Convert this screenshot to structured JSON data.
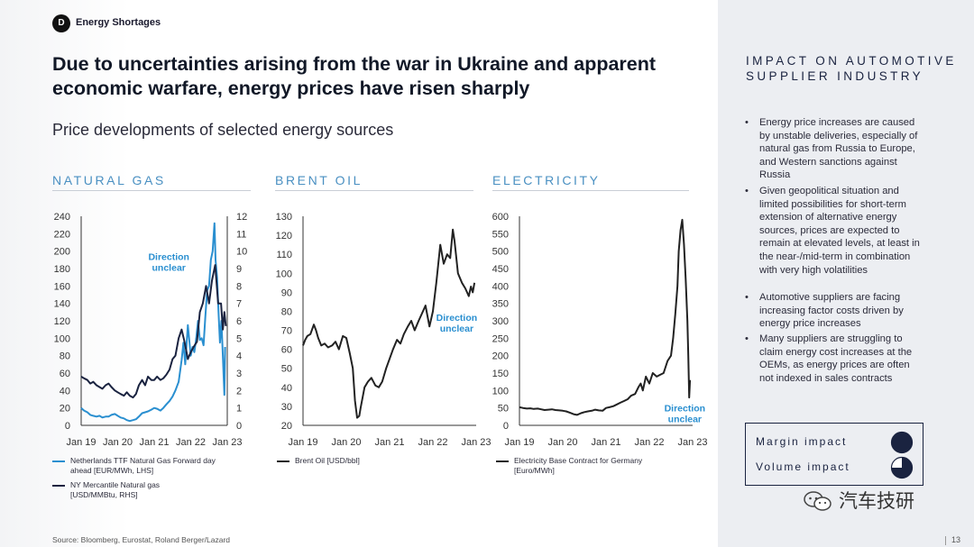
{
  "badge": "D",
  "section": "Energy Shortages",
  "headline": "Due to uncertainties arising from the war in Ukraine and apparent economic warfare, energy prices have risen sharply",
  "subtitle": "Price developments of selected energy sources",
  "source": "Source: Bloomberg, Eurostat, Roland Berger/Lazard",
  "page_number": "13",
  "sidebar": {
    "title": "IMPACT ON AUTOMOTIVE SUPPLIER INDUSTRY",
    "bullets": [
      "Energy price increases are caused by unstable deliveries, especially of natural gas from Russia to Europe, and Western sanctions against Russia",
      "Given geopolitical situation and limited possibilities for short-term extension of alternative energy sources, prices are expected to remain at elevated levels, at least in the near-/mid-term in combination with very high volatilities",
      "Automotive suppliers are facing increasing factor costs driven by energy price increases",
      "Many suppliers are struggling to claim energy cost increases at the OEMs, as energy prices are often not indexed in sales contracts"
    ],
    "impact": [
      {
        "label": "Margin impact",
        "level": 1.0
      },
      {
        "label": "Volume impact",
        "level": 0.75
      }
    ]
  },
  "watermark": "汽车技研",
  "colors": {
    "navy": "#1a2340",
    "blue": "#2a8fd0",
    "title_blue": "#4a90c2",
    "black": "#222222"
  },
  "chart_data": [
    {
      "type": "line",
      "title": "NATURAL GAS",
      "x_ticks": [
        "Jan 19",
        "Jan 20",
        "Jan 21",
        "Jan 22",
        "Jan 23"
      ],
      "x_range": [
        2019.0,
        2023.0
      ],
      "ylim": [
        0,
        240
      ],
      "y_ticks": [
        "0",
        "20",
        "40",
        "60",
        "80",
        "100",
        "120",
        "140",
        "160",
        "180",
        "200",
        "220",
        "240"
      ],
      "y2lim": [
        0,
        12
      ],
      "y2_ticks": [
        "0",
        "1",
        "2",
        "3",
        "4",
        "5",
        "6",
        "7",
        "8",
        "9",
        "10",
        "11",
        "12"
      ],
      "annotation": "Direction unclear",
      "annotation_at": [
        2021.4,
        190
      ],
      "series": [
        {
          "name": "Netherlands TTF Natural Gas Forward day ahead [EUR/MWh, LHS]",
          "color": "#2a8fd0",
          "axis": "left",
          "x": [
            2019.0,
            2019.08,
            2019.17,
            2019.25,
            2019.33,
            2019.42,
            2019.5,
            2019.58,
            2019.67,
            2019.75,
            2019.83,
            2019.92,
            2020.0,
            2020.08,
            2020.17,
            2020.25,
            2020.33,
            2020.42,
            2020.5,
            2020.58,
            2020.67,
            2020.75,
            2020.83,
            2020.92,
            2021.0,
            2021.08,
            2021.17,
            2021.25,
            2021.33,
            2021.42,
            2021.5,
            2021.58,
            2021.67,
            2021.75,
            2021.8,
            2021.85,
            2021.92,
            2022.0,
            2022.05,
            2022.1,
            2022.15,
            2022.2,
            2022.25,
            2022.3,
            2022.35,
            2022.4,
            2022.45,
            2022.5,
            2022.55,
            2022.6,
            2022.65,
            2022.68,
            2022.72,
            2022.76,
            2022.8,
            2022.84,
            2022.88,
            2022.92,
            2022.94
          ],
          "y": [
            20,
            17,
            15,
            12,
            11,
            10,
            11,
            9,
            10,
            10,
            12,
            13,
            11,
            9,
            8,
            6,
            5,
            6,
            7,
            10,
            14,
            15,
            16,
            18,
            20,
            19,
            17,
            20,
            24,
            28,
            33,
            40,
            50,
            75,
            95,
            70,
            115,
            80,
            90,
            84,
            100,
            120,
            98,
            100,
            92,
            125,
            155,
            160,
            190,
            200,
            232,
            190,
            170,
            130,
            95,
            120,
            80,
            35,
            90
          ]
        },
        {
          "name": "NY Mercantile Natural gas [USD/MMBtu, RHS]",
          "color": "#1a2340",
          "axis": "right",
          "x": [
            2019.0,
            2019.08,
            2019.17,
            2019.25,
            2019.33,
            2019.42,
            2019.5,
            2019.58,
            2019.67,
            2019.75,
            2019.83,
            2019.92,
            2020.0,
            2020.08,
            2020.17,
            2020.25,
            2020.33,
            2020.42,
            2020.5,
            2020.58,
            2020.67,
            2020.75,
            2020.83,
            2020.92,
            2021.0,
            2021.08,
            2021.17,
            2021.25,
            2021.33,
            2021.42,
            2021.5,
            2021.58,
            2021.67,
            2021.75,
            2021.83,
            2021.92,
            2022.0,
            2022.08,
            2022.17,
            2022.25,
            2022.33,
            2022.42,
            2022.5,
            2022.58,
            2022.67,
            2022.75,
            2022.83,
            2022.88,
            2022.92,
            2022.96
          ],
          "y": [
            2.8,
            2.7,
            2.6,
            2.4,
            2.5,
            2.3,
            2.2,
            2.1,
            2.3,
            2.4,
            2.2,
            2.0,
            1.9,
            1.8,
            1.7,
            1.9,
            1.7,
            1.6,
            1.8,
            2.3,
            2.6,
            2.3,
            2.8,
            2.6,
            2.6,
            2.8,
            2.6,
            2.7,
            2.9,
            3.2,
            3.8,
            4.0,
            5.0,
            5.5,
            4.8,
            3.8,
            4.2,
            4.5,
            4.8,
            6.5,
            7.0,
            8.0,
            7.0,
            8.3,
            9.2,
            7.0,
            7.0,
            5.5,
            6.5,
            5.7
          ]
        }
      ]
    },
    {
      "type": "line",
      "title": "BRENT OIL",
      "x_ticks": [
        "Jan 19",
        "Jan 20",
        "Jan 21",
        "Jan 22",
        "Jan 23"
      ],
      "x_range": [
        2019.0,
        2023.0
      ],
      "ylim": [
        20,
        130
      ],
      "y_ticks": [
        "20",
        "30",
        "40",
        "50",
        "60",
        "70",
        "80",
        "90",
        "100",
        "110",
        "120",
        "130"
      ],
      "annotation": "Direction unclear",
      "annotation_at": [
        2022.55,
        75
      ],
      "series": [
        {
          "name": "Brent Oil [USD/bbl]",
          "color": "#222222",
          "axis": "left",
          "x": [
            2019.0,
            2019.05,
            2019.1,
            2019.17,
            2019.25,
            2019.3,
            2019.35,
            2019.42,
            2019.5,
            2019.58,
            2019.67,
            2019.75,
            2019.83,
            2019.92,
            2020.0,
            2020.08,
            2020.15,
            2020.2,
            2020.25,
            2020.3,
            2020.33,
            2020.42,
            2020.5,
            2020.58,
            2020.67,
            2020.75,
            2020.83,
            2020.92,
            2021.0,
            2021.08,
            2021.17,
            2021.25,
            2021.33,
            2021.42,
            2021.5,
            2021.58,
            2021.67,
            2021.75,
            2021.83,
            2021.92,
            2022.0,
            2022.08,
            2022.17,
            2022.25,
            2022.33,
            2022.4,
            2022.46,
            2022.5,
            2022.58,
            2022.67,
            2022.75,
            2022.83,
            2022.88,
            2022.92,
            2022.96
          ],
          "y": [
            62,
            65,
            67,
            68,
            73,
            70,
            66,
            62,
            63,
            61,
            62,
            64,
            60,
            67,
            66,
            58,
            50,
            33,
            24,
            25,
            29,
            40,
            43,
            45,
            41,
            40,
            43,
            50,
            55,
            60,
            65,
            63,
            68,
            72,
            75,
            70,
            75,
            79,
            83,
            72,
            80,
            95,
            115,
            105,
            110,
            108,
            123,
            117,
            100,
            95,
            92,
            88,
            93,
            90,
            95
          ]
        }
      ]
    },
    {
      "type": "line",
      "title": "ELECTRICITY",
      "x_ticks": [
        "Jan 19",
        "Jan 20",
        "Jan 21",
        "Jan 22",
        "Jan 23"
      ],
      "x_range": [
        2019.0,
        2023.0
      ],
      "ylim": [
        0,
        600
      ],
      "y_ticks": [
        "0",
        "50",
        "100",
        "150",
        "200",
        "250",
        "300",
        "350",
        "400",
        "450",
        "500",
        "550",
        "600"
      ],
      "annotation": "Direction unclear",
      "annotation_at": [
        2022.82,
        40
      ],
      "series": [
        {
          "name": "Electricity Base Contract for Germany [Euro/MWh]",
          "color": "#222222",
          "axis": "left",
          "x": [
            2019.0,
            2019.08,
            2019.17,
            2019.25,
            2019.33,
            2019.42,
            2019.5,
            2019.58,
            2019.67,
            2019.75,
            2019.83,
            2019.92,
            2020.0,
            2020.08,
            2020.17,
            2020.25,
            2020.33,
            2020.42,
            2020.5,
            2020.58,
            2020.67,
            2020.75,
            2020.83,
            2020.92,
            2021.0,
            2021.08,
            2021.17,
            2021.25,
            2021.33,
            2021.42,
            2021.5,
            2021.58,
            2021.67,
            2021.75,
            2021.8,
            2021.85,
            2021.92,
            2022.0,
            2022.08,
            2022.17,
            2022.25,
            2022.33,
            2022.42,
            2022.5,
            2022.55,
            2022.6,
            2022.65,
            2022.68,
            2022.72,
            2022.76,
            2022.8,
            2022.84,
            2022.88,
            2022.9,
            2022.92,
            2022.94
          ],
          "y": [
            52,
            50,
            48,
            49,
            47,
            48,
            46,
            44,
            45,
            46,
            44,
            43,
            42,
            40,
            36,
            32,
            30,
            35,
            38,
            40,
            42,
            45,
            43,
            42,
            50,
            52,
            55,
            60,
            65,
            70,
            75,
            85,
            90,
            110,
            120,
            100,
            140,
            120,
            150,
            140,
            145,
            150,
            185,
            200,
            250,
            320,
            400,
            500,
            560,
            590,
            520,
            420,
            300,
            200,
            80,
            130
          ]
        }
      ]
    }
  ]
}
